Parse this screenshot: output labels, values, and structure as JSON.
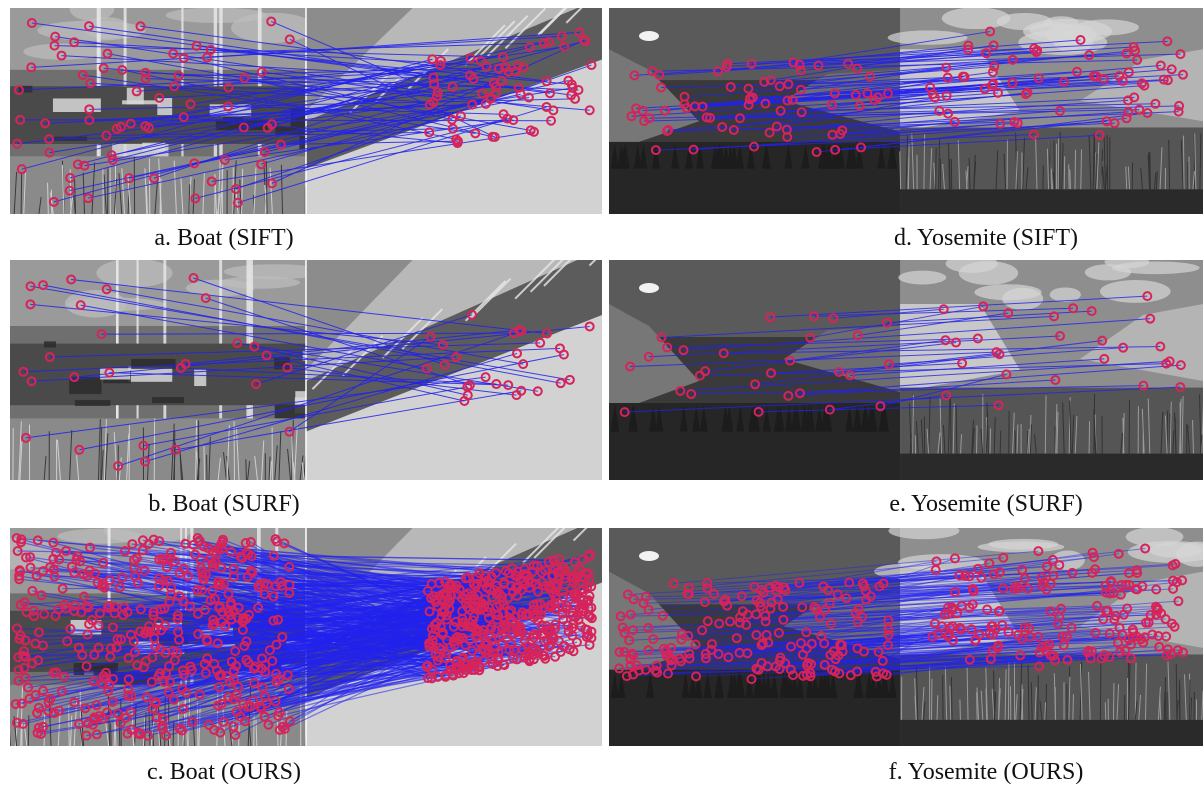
{
  "figure": {
    "panels": [
      {
        "id": "a",
        "scene": "boat",
        "method": "SIFT",
        "caption": "a. Boat (SIFT)",
        "match_density": "medium"
      },
      {
        "id": "b",
        "scene": "boat",
        "method": "SURF",
        "caption": "b. Boat (SURF)",
        "match_density": "low"
      },
      {
        "id": "c",
        "scene": "boat",
        "method": "OURS",
        "caption": "c. Boat (OURS)",
        "match_density": "very-high"
      },
      {
        "id": "d",
        "scene": "yosemite",
        "method": "SIFT",
        "caption": "d. Yosemite (SIFT)",
        "match_density": "medium"
      },
      {
        "id": "e",
        "scene": "yosemite",
        "method": "SURF",
        "caption": "e. Yosemite (SURF)",
        "match_density": "low"
      },
      {
        "id": "f",
        "scene": "yosemite",
        "method": "OURS",
        "caption": "f. Yosemite (OURS)",
        "match_density": "high"
      }
    ]
  },
  "colors": {
    "match_line": "#2222ee",
    "keypoint": "#d6245a"
  }
}
